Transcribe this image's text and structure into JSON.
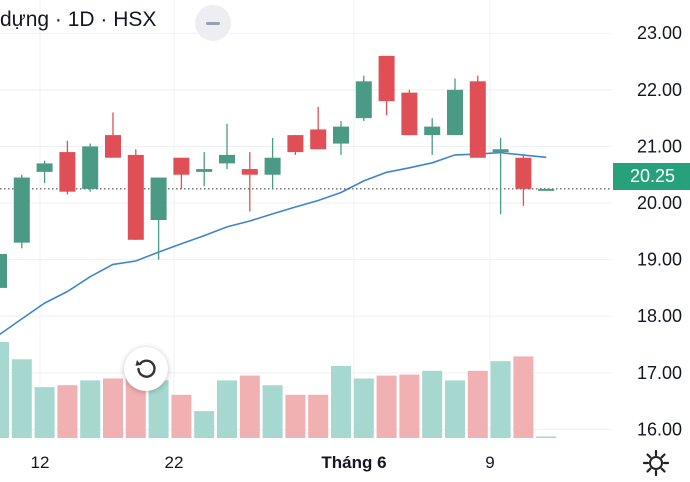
{
  "header": {
    "title": "dựng · 1D · HSX"
  },
  "price_label": "20.25",
  "colors": {
    "up": "#4a9a85",
    "down": "#e04f55",
    "vol_up": "#a6d8d0",
    "vol_down": "#f1b1b3",
    "ma": "#3f86c9",
    "tag": "#26a17b"
  },
  "icons": {
    "collapse": "minus-icon",
    "reset": "reset-icon",
    "settings": "gear-icon"
  },
  "chart_data": {
    "type": "candlestick",
    "y_ticks": [
      "16.00",
      "17.00",
      "18.00",
      "19.00",
      "20.00",
      "21.00",
      "22.00",
      "23.00"
    ],
    "ylim": [
      15.6,
      23.3
    ],
    "x_ticks": [
      "12",
      "22",
      "Tháng 6",
      "9"
    ],
    "current_price": 20.25,
    "candles": [
      {
        "open": 18.5,
        "high": 19.1,
        "low": 18.5,
        "close": 19.1
      },
      {
        "open": 19.3,
        "high": 20.5,
        "low": 19.2,
        "close": 20.45
      },
      {
        "open": 20.55,
        "high": 20.75,
        "low": 20.35,
        "close": 20.7
      },
      {
        "open": 20.9,
        "high": 21.1,
        "low": 20.15,
        "close": 20.2
      },
      {
        "open": 20.25,
        "high": 21.05,
        "low": 20.2,
        "close": 21.0
      },
      {
        "open": 21.2,
        "high": 21.6,
        "low": 20.85,
        "close": 20.8
      },
      {
        "open": 20.85,
        "high": 20.95,
        "low": 19.35,
        "close": 19.35
      },
      {
        "open": 19.7,
        "high": 20.45,
        "low": 19.0,
        "close": 20.45
      },
      {
        "open": 20.8,
        "high": 20.8,
        "low": 20.25,
        "close": 20.5
      },
      {
        "open": 20.55,
        "high": 20.9,
        "low": 20.3,
        "close": 20.6
      },
      {
        "open": 20.7,
        "high": 21.4,
        "low": 20.6,
        "close": 20.85
      },
      {
        "open": 20.6,
        "high": 20.9,
        "low": 19.85,
        "close": 20.5
      },
      {
        "open": 20.5,
        "high": 21.15,
        "low": 20.25,
        "close": 20.8
      },
      {
        "open": 21.2,
        "high": 21.2,
        "low": 20.85,
        "close": 20.9
      },
      {
        "open": 21.3,
        "high": 21.7,
        "low": 20.95,
        "close": 20.95
      },
      {
        "open": 21.05,
        "high": 21.45,
        "low": 20.85,
        "close": 21.35
      },
      {
        "open": 21.5,
        "high": 22.25,
        "low": 21.45,
        "close": 22.15
      },
      {
        "open": 22.6,
        "high": 22.6,
        "low": 21.55,
        "close": 21.8
      },
      {
        "open": 21.95,
        "high": 22.0,
        "low": 21.2,
        "close": 21.2
      },
      {
        "open": 21.2,
        "high": 21.5,
        "low": 20.85,
        "close": 21.35
      },
      {
        "open": 21.2,
        "high": 22.2,
        "low": 21.2,
        "close": 22.0
      },
      {
        "open": 22.15,
        "high": 22.25,
        "low": 20.8,
        "close": 20.8
      },
      {
        "open": 20.9,
        "high": 21.15,
        "low": 19.8,
        "close": 20.95
      },
      {
        "open": 20.8,
        "high": 20.85,
        "low": 19.95,
        "close": 20.25
      },
      {
        "open": 20.25,
        "high": 20.25,
        "low": 20.25,
        "close": 20.25
      }
    ],
    "volume_relative": [
      1.0,
      0.82,
      0.53,
      0.55,
      0.6,
      0.62,
      0.75,
      0.6,
      0.45,
      0.28,
      0.6,
      0.65,
      0.55,
      0.45,
      0.45,
      0.75,
      0.62,
      0.65,
      0.66,
      0.7,
      0.6,
      0.7,
      0.8,
      0.85,
      0.0
    ]
  }
}
